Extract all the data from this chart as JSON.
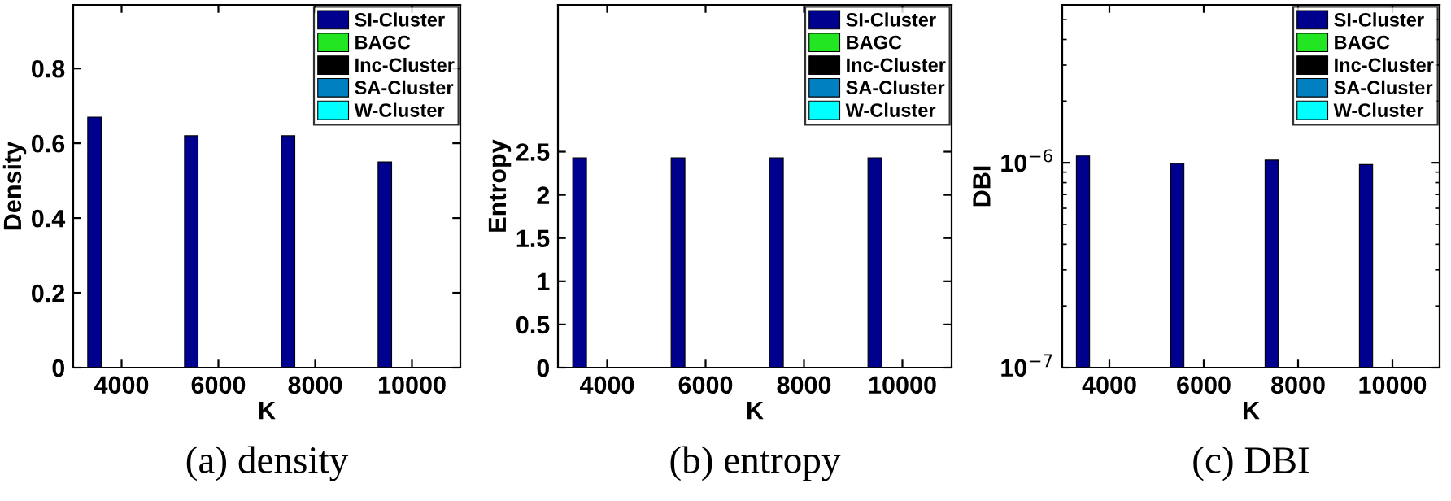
{
  "chart_data": [
    {
      "type": "bar",
      "title": "(a) density",
      "xlabel": "K",
      "ylabel": "Density",
      "categories": [
        "4000",
        "6000",
        "8000",
        "10000"
      ],
      "series": [
        {
          "name": "SI-Cluster",
          "color": "#00008f",
          "values": [
            0.67,
            0.62,
            0.62,
            0.55
          ]
        },
        {
          "name": "BAGC",
          "color": "#22e622",
          "values": [
            null,
            null,
            null,
            null
          ]
        },
        {
          "name": "Inc-Cluster",
          "color": "#000000",
          "values": [
            null,
            null,
            null,
            null
          ]
        },
        {
          "name": "SA-Cluster",
          "color": "#0080c0",
          "values": [
            null,
            null,
            null,
            null
          ]
        },
        {
          "name": "W-Cluster",
          "color": "#00ffff",
          "values": [
            null,
            null,
            null,
            null
          ]
        }
      ],
      "ylim": [
        0,
        0.97
      ],
      "yticks": [
        0,
        0.2,
        0.4,
        0.6,
        0.8
      ],
      "grid": false,
      "legend": "top right"
    },
    {
      "type": "bar",
      "title": "(b) entropy",
      "xlabel": "K",
      "ylabel": "Entropy",
      "categories": [
        "4000",
        "6000",
        "8000",
        "10000"
      ],
      "series": [
        {
          "name": "SI-Cluster",
          "color": "#00008f",
          "values": [
            2.43,
            2.43,
            2.43,
            2.43
          ]
        },
        {
          "name": "BAGC",
          "color": "#22e622",
          "values": [
            null,
            null,
            null,
            null
          ]
        },
        {
          "name": "Inc-Cluster",
          "color": "#000000",
          "values": [
            null,
            null,
            null,
            null
          ]
        },
        {
          "name": "SA-Cluster",
          "color": "#0080c0",
          "values": [
            null,
            null,
            null,
            null
          ]
        },
        {
          "name": "W-Cluster",
          "color": "#00ffff",
          "values": [
            null,
            null,
            null,
            null
          ]
        }
      ],
      "ylim": [
        0,
        4.2
      ],
      "yticks": [
        0,
        0.5,
        1,
        1.5,
        2,
        2.5
      ],
      "grid": false,
      "legend": "top right"
    },
    {
      "type": "bar",
      "title": "(c) DBI",
      "xlabel": "K",
      "ylabel": "DBI",
      "categories": [
        "4000",
        "6000",
        "8000",
        "10000"
      ],
      "series": [
        {
          "name": "SI-Cluster",
          "color": "#00008f",
          "values": [
            1.08e-06,
            9.9e-07,
            1.03e-06,
            9.8e-07
          ]
        },
        {
          "name": "BAGC",
          "color": "#22e622",
          "values": [
            null,
            null,
            null,
            null
          ]
        },
        {
          "name": "Inc-Cluster",
          "color": "#000000",
          "values": [
            null,
            null,
            null,
            null
          ]
        },
        {
          "name": "SA-Cluster",
          "color": "#0080c0",
          "values": [
            null,
            null,
            null,
            null
          ]
        },
        {
          "name": "W-Cluster",
          "color": "#00ffff",
          "values": [
            null,
            null,
            null,
            null
          ]
        }
      ],
      "log": true,
      "ylim": [
        1e-07,
        5.9e-06
      ],
      "yticks": [
        {
          "value": 1e-07,
          "label": "10$^{−7}$"
        },
        {
          "value": 1e-06,
          "label": "10$^{−6}$"
        }
      ],
      "grid": false,
      "legend": "top right"
    }
  ]
}
